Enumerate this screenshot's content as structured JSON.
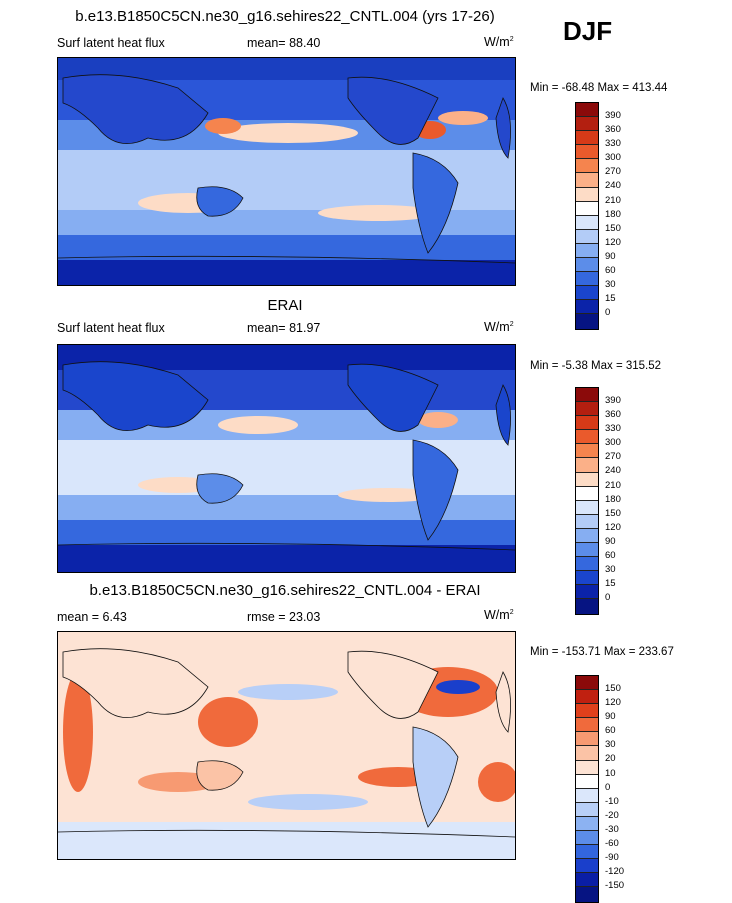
{
  "season": "DJF",
  "panel1": {
    "title": "b.e13.B1850C5CN.ne30_g16.sehires22_CNTL.004 (yrs 17-26)",
    "left": "Surf latent heat flux",
    "mean_label": "mean=",
    "mean_value": "88.40",
    "units": "W/m",
    "units_exp": "2",
    "minmax": "Min = -68.48 Max = 413.44",
    "colorbar_labels": [
      "390",
      "360",
      "330",
      "300",
      "270",
      "240",
      "210",
      "180",
      "150",
      "120",
      "90",
      "60",
      "30",
      "15",
      "0"
    ]
  },
  "panel2": {
    "title": "ERAI",
    "left": "Surf latent heat flux",
    "mean_label": "mean=",
    "mean_value": "81.97",
    "units": "W/m",
    "units_exp": "2",
    "minmax": "Min =  -5.38 Max = 315.52",
    "colorbar_labels": [
      "390",
      "360",
      "330",
      "300",
      "270",
      "240",
      "210",
      "180",
      "150",
      "120",
      "90",
      "60",
      "30",
      "15",
      "0"
    ]
  },
  "panel3": {
    "title": "b.e13.B1850C5CN.ne30_g16.sehires22_CNTL.004 - ERAI",
    "mean_label": "mean =",
    "mean_value": "6.43",
    "rmse_label": "rmse =",
    "rmse_value": "23.03",
    "units": "W/m",
    "units_exp": "2",
    "minmax": "Min = -153.71 Max = 233.67",
    "colorbar_labels": [
      "150",
      "120",
      "90",
      "60",
      "30",
      "20",
      "10",
      "0",
      "-10",
      "-20",
      "-30",
      "-60",
      "-90",
      "-120",
      "-150"
    ]
  },
  "colors": {
    "abs_scale": [
      "#8b0a0a",
      "#b31f10",
      "#d63a18",
      "#ea5a2c",
      "#f5844e",
      "#fbb088",
      "#fddcc6",
      "#ffffff",
      "#d9e6fb",
      "#b3ccf7",
      "#86aef2",
      "#5c8de9",
      "#3568de",
      "#1a45cc",
      "#0b23a9",
      "#061482"
    ],
    "diff_scale": [
      "#8b0a0a",
      "#c02010",
      "#e0401c",
      "#f06a3c",
      "#f79a72",
      "#fbc3a6",
      "#fde3d4",
      "#ffffff",
      "#dbe7fb",
      "#b8cff7",
      "#8cb2f2",
      "#5c8de9",
      "#3366de",
      "#1a3fcb",
      "#0a1ea5",
      "#061482"
    ]
  }
}
